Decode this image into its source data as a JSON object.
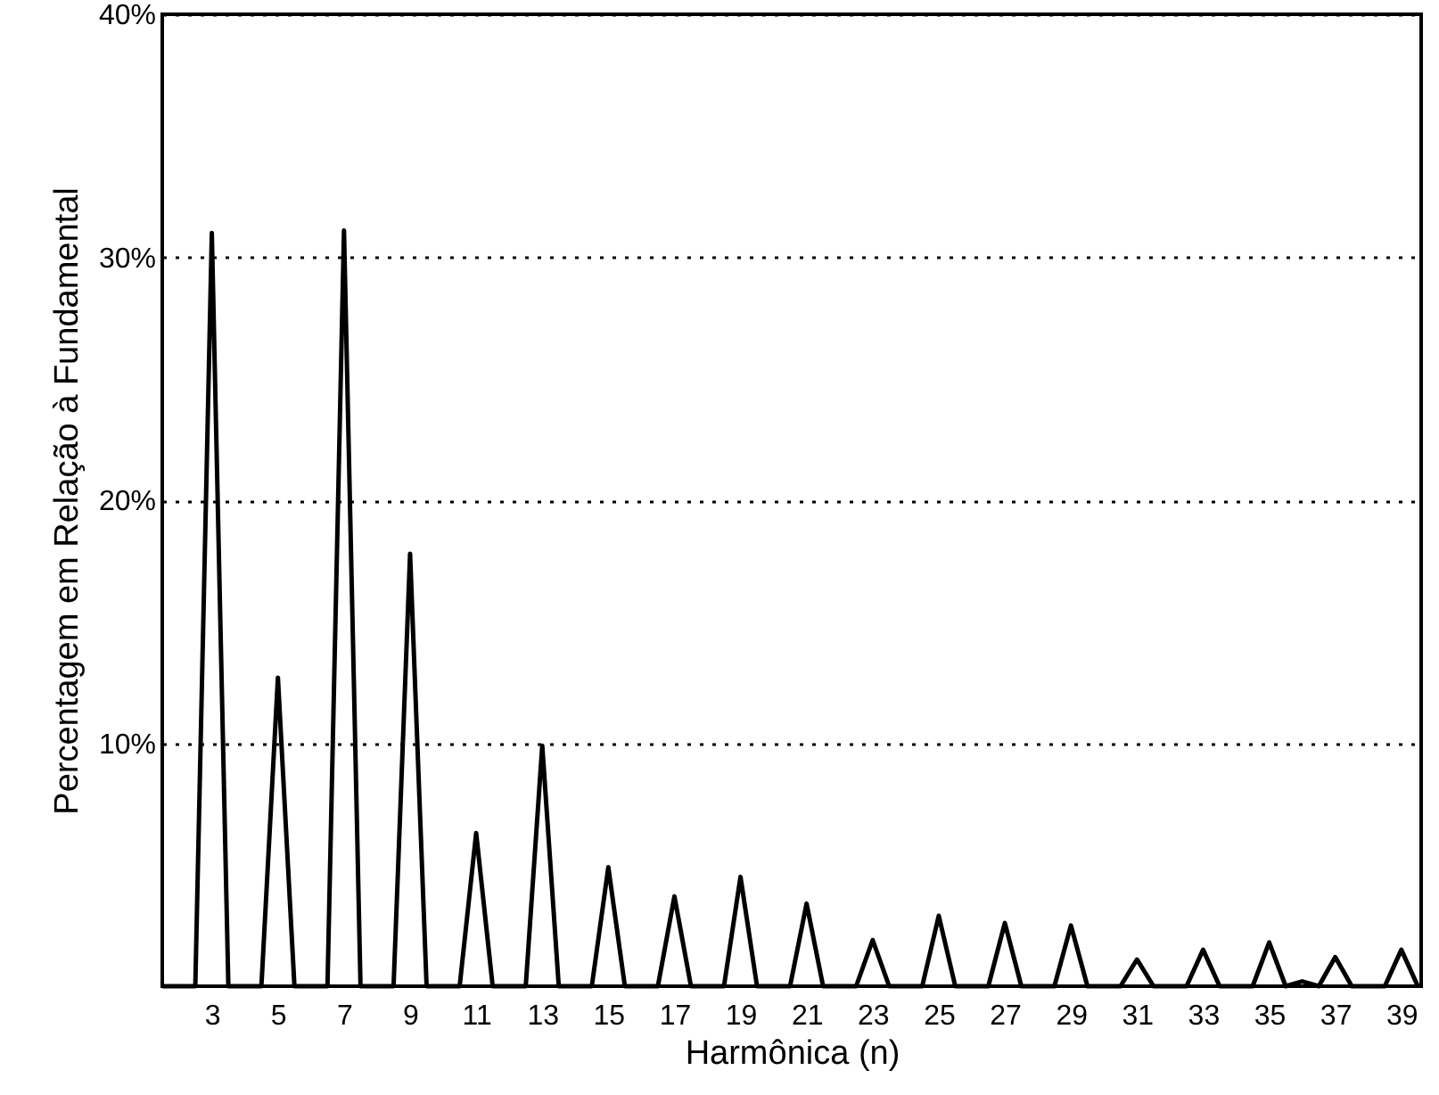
{
  "chart_data": {
    "type": "line",
    "xlabel": "Harmônica (n)",
    "ylabel": "Percentagem em Relação à Fundamental",
    "x": [
      1.5,
      2,
      2.5,
      3,
      3.5,
      4,
      4.5,
      5,
      5.5,
      6,
      6.5,
      7,
      7.5,
      8,
      8.5,
      9,
      9.5,
      10,
      10.5,
      11,
      11.5,
      12,
      12.5,
      13,
      13.5,
      14,
      14.5,
      15,
      15.5,
      16,
      16.5,
      17,
      17.5,
      18,
      18.5,
      19,
      19.5,
      20,
      20.5,
      21,
      21.5,
      22,
      22.5,
      23,
      23.5,
      24,
      24.5,
      25,
      25.5,
      26,
      26.5,
      27,
      27.5,
      28,
      28.5,
      29,
      29.5,
      30,
      30.5,
      31,
      31.5,
      32,
      32.5,
      33,
      33.5,
      34,
      34.5,
      35,
      35.5,
      36,
      36.5,
      37,
      37.5,
      38,
      38.5,
      39,
      39.5
    ],
    "series": [
      {
        "color": "#000000",
        "values": [
          0,
          0,
          0,
          31.0,
          0,
          0,
          0,
          12.7,
          0,
          0,
          0,
          31.1,
          0,
          0,
          0,
          17.8,
          0,
          0,
          0,
          6.3,
          0,
          0,
          0,
          9.9,
          0,
          0,
          0,
          4.9,
          0,
          0,
          0,
          3.7,
          0,
          0,
          0,
          4.5,
          0,
          0,
          0,
          3.4,
          0,
          0,
          0,
          1.9,
          0,
          0,
          0,
          2.9,
          0,
          0,
          0,
          2.6,
          0,
          0,
          0,
          2.5,
          0,
          0,
          0,
          1.1,
          0,
          0,
          0,
          1.5,
          0,
          0,
          0,
          1.8,
          0,
          0.2,
          0,
          1.2,
          0,
          0,
          0,
          1.5,
          0
        ]
      }
    ],
    "xlim": [
      1.5,
      39.6
    ],
    "xticks": [
      3,
      5,
      7,
      9,
      11,
      13,
      15,
      17,
      19,
      21,
      23,
      25,
      27,
      29,
      31,
      33,
      35,
      37,
      39
    ],
    "ylim": [
      0,
      40
    ],
    "yticks": [
      {
        "value": 10,
        "label": "10%"
      },
      {
        "value": 20,
        "label": "20%"
      },
      {
        "value": 30,
        "label": "30%"
      },
      {
        "value": 40,
        "label": "40%"
      }
    ],
    "grid": "y",
    "line_style": "solid",
    "marker": "none"
  }
}
